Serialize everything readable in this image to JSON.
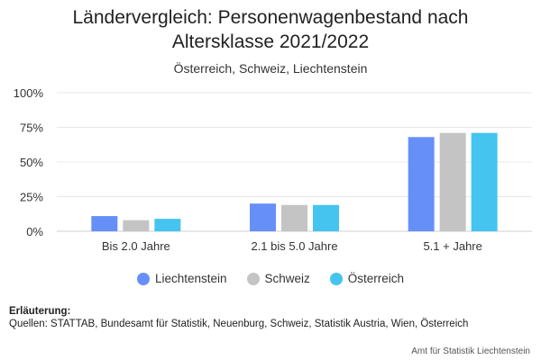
{
  "header": {
    "title_line1": "Ländervergleich: Personenwagenbestand nach",
    "title_line2": "Altersklasse 2021/2022",
    "subtitle": "Österreich, Schweiz, Liechtenstein"
  },
  "chart_data": {
    "type": "bar",
    "title": "Ländervergleich: Personenwagenbestand nach Altersklasse 2021/2022",
    "subtitle": "Österreich, Schweiz, Liechtenstein",
    "categories": [
      "Bis 2.0 Jahre",
      "2.1 bis 5.0 Jahre",
      "5.1 + Jahre"
    ],
    "series": [
      {
        "name": "Liechtenstein",
        "color": "#6690F8",
        "values": [
          11,
          20,
          68
        ]
      },
      {
        "name": "Schweiz",
        "color": "#C4C4C4",
        "values": [
          8,
          19,
          71
        ]
      },
      {
        "name": "Österreich",
        "color": "#45C4EF",
        "values": [
          9,
          19,
          71
        ]
      }
    ],
    "y_ticks": [
      "0%",
      "25%",
      "50%",
      "75%",
      "100%"
    ],
    "ylim": [
      0,
      100
    ],
    "grid": true,
    "legend_position": "bottom"
  },
  "footer": {
    "note_heading": "Erläuterung:",
    "note_text": "Quellen: STATTAB, Bundesamt für Statistik, Neuenburg, Schweiz, Statistik Austria, Wien, Österreich",
    "credit": "Amt für Statistik Liechtenstein"
  }
}
